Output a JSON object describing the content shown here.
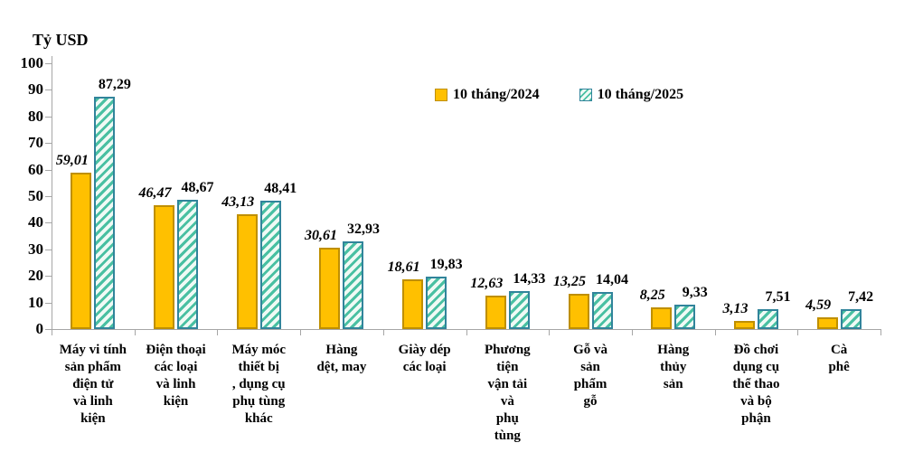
{
  "chart_data": {
    "type": "bar",
    "title": "",
    "ylabel": "Tỷ USD",
    "xlabel": "",
    "ylim": [
      0,
      100
    ],
    "ytick_step": 10,
    "grid": false,
    "legend_position": "top-center",
    "axis_color": "#a6a6a6",
    "categories": [
      "Máy vi tính sản phẩm điện tử và linh kiện",
      "Điện thoại các loại và linh kiện",
      "Máy móc thiết bị , dụng cụ phụ tùng khác",
      "Hàng dệt, may",
      "Giày dép các loại",
      "Phương tiện vận tải và phụ tùng",
      "Gỗ và sản phẩm gỗ",
      "Hàng thủy sản",
      "Đồ chơi dụng cụ thể thao và bộ phận",
      "Cà phê"
    ],
    "category_label_lines": [
      [
        "Máy vi tính",
        "sản phẩm",
        "điện tử",
        "và linh",
        "kiện"
      ],
      [
        "Điện thoại",
        "các loại",
        "và linh",
        "kiện"
      ],
      [
        "Máy móc",
        "thiết bị",
        ", dụng cụ",
        "phụ tùng",
        "khác"
      ],
      [
        "Hàng",
        "dệt, may"
      ],
      [
        "Giày dép",
        "các loại"
      ],
      [
        "Phương",
        "tiện",
        "vận tải",
        "và",
        "phụ",
        "tùng"
      ],
      [
        "Gỗ và",
        "sản",
        "phẩm",
        "gỗ"
      ],
      [
        "Hàng",
        "thủy",
        "sản"
      ],
      [
        "Đồ chơi",
        "dụng cụ",
        "thể thao",
        "và bộ",
        "phận"
      ],
      [
        "Cà",
        "phê"
      ]
    ],
    "series": [
      {
        "name": "10 tháng/2024",
        "values": [
          59.01,
          46.47,
          43.13,
          30.61,
          18.61,
          12.63,
          13.25,
          8.25,
          3.13,
          4.59
        ],
        "labels": [
          "59,01",
          "46,47",
          "43,13",
          "30,61",
          "18,61",
          "12,63",
          "13,25",
          "8,25",
          "3,13",
          "4,59"
        ],
        "style": "solid",
        "fill": "#ffc000",
        "border": "#bf8f00",
        "label_style": "bold-italic"
      },
      {
        "name": "10 tháng/2025",
        "values": [
          87.29,
          48.67,
          48.41,
          32.93,
          19.83,
          14.33,
          14.04,
          9.33,
          7.51,
          7.42
        ],
        "labels": [
          "87,29",
          "48,67",
          "48,41",
          "32,93",
          "19,83",
          "14,33",
          "14,04",
          "9,33",
          "7,51",
          "7,42"
        ],
        "style": "hatch",
        "fill": "#f0faf5",
        "hatch_color": "#49c0a2",
        "border": "#31849b",
        "label_style": "bold"
      }
    ]
  }
}
